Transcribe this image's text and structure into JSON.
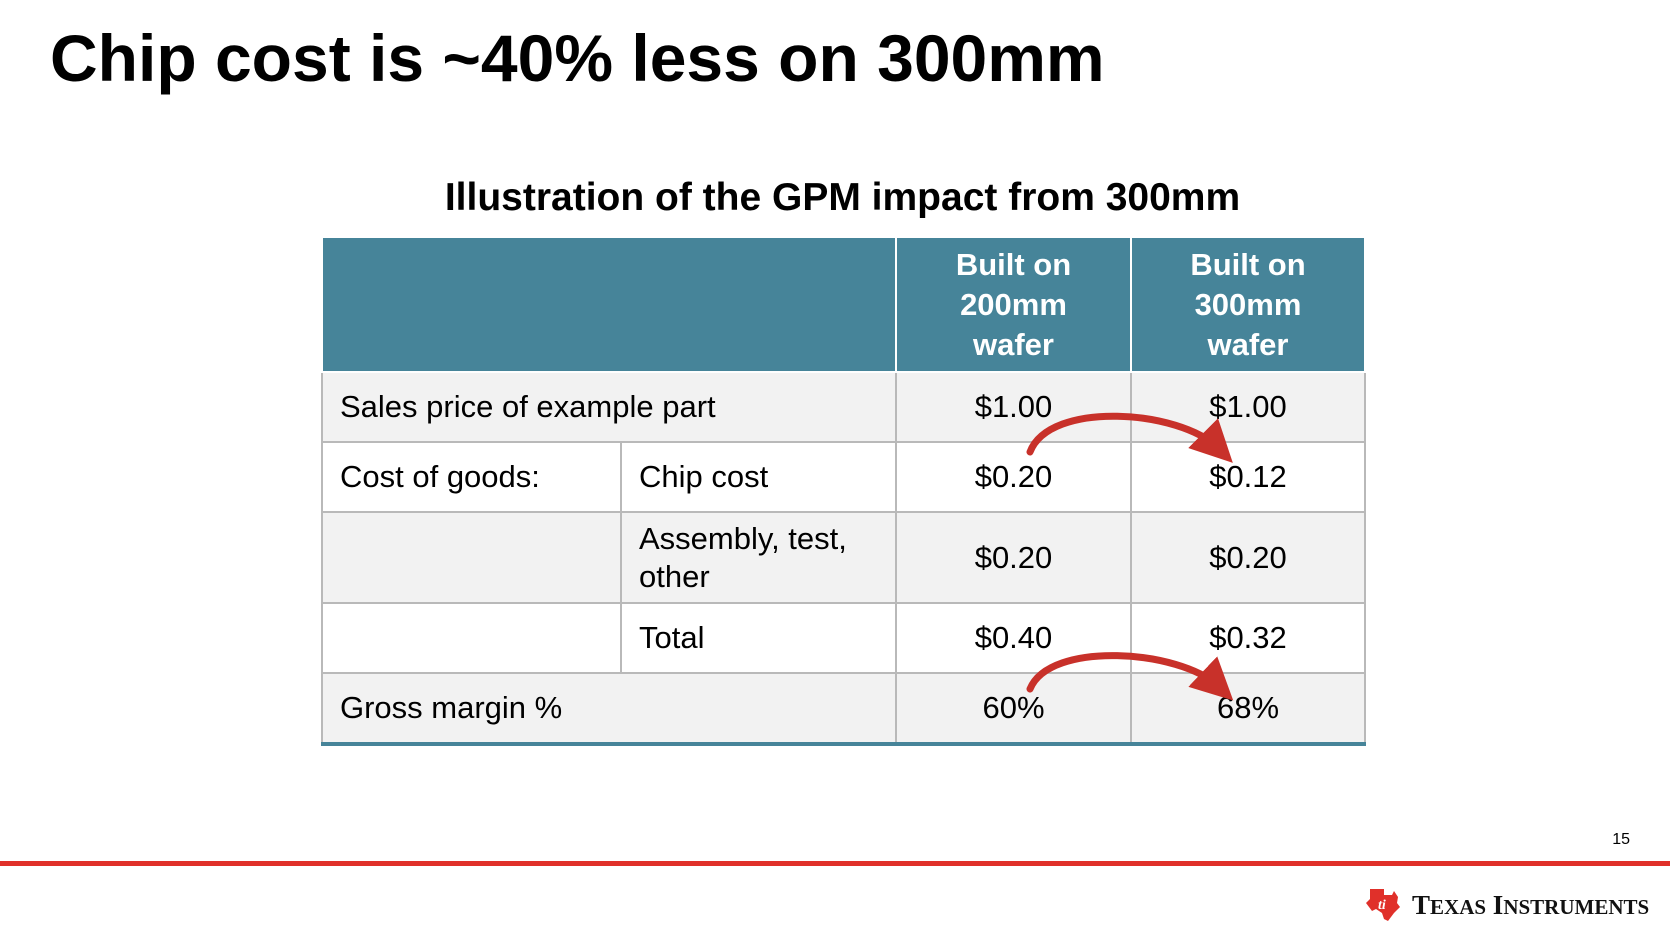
{
  "slide": {
    "title": "Chip cost is ~40% less on 300mm",
    "page_number": "15"
  },
  "table": {
    "title": "Illustration of the GPM impact from 300mm",
    "headers": {
      "col_200": "Built on 200mm wafer",
      "col_300": "Built on 300mm wafer"
    },
    "rows": [
      {
        "label": "Sales price of example part",
        "sublabel": "",
        "v200": "$1.00",
        "v300": "$1.00"
      },
      {
        "label": "Cost of goods:",
        "sublabel": "Chip cost",
        "v200": "$0.20",
        "v300": "$0.12"
      },
      {
        "label": "",
        "sublabel": "Assembly, test, other",
        "v200": "$0.20",
        "v300": "$0.20"
      },
      {
        "label": "",
        "sublabel": "Total",
        "v200": "$0.40",
        "v300": "$0.32"
      },
      {
        "label": "Gross margin %",
        "sublabel": "",
        "v200": "60%",
        "v300": "68%"
      }
    ]
  },
  "colors": {
    "header_bg": "#468499",
    "row_shade": "#f2f2f2",
    "accent_red": "#e0302a",
    "arrow_red": "#c8312a"
  },
  "footer": {
    "logo_text_first": "T",
    "logo_text_first_rest": "EXAS",
    "logo_text_second": "I",
    "logo_text_second_rest": "NSTRUMENTS",
    "logo_icon": "texas-state-logo-icon"
  }
}
